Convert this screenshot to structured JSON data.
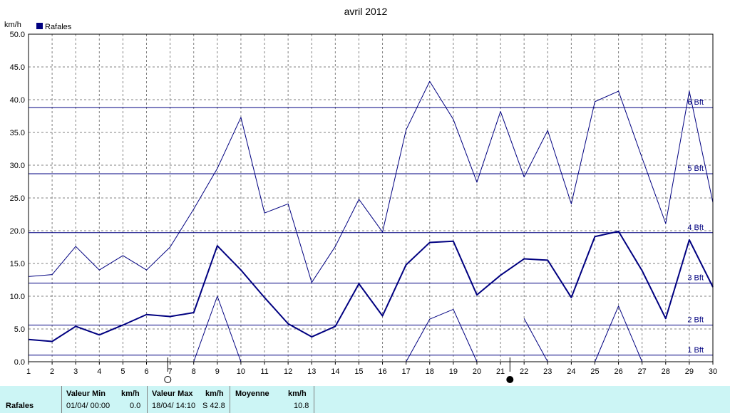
{
  "chart_data": {
    "type": "line",
    "title": "avril 2012",
    "ylabel": "km/h",
    "legend": {
      "label": "Rafales",
      "color": "#000080",
      "placement": "top-left"
    },
    "x": [
      1,
      2,
      3,
      4,
      5,
      6,
      7,
      8,
      9,
      10,
      11,
      12,
      13,
      14,
      15,
      16,
      17,
      18,
      19,
      20,
      21,
      22,
      23,
      24,
      25,
      26,
      27,
      28,
      29,
      30
    ],
    "ylim": [
      0,
      50
    ],
    "yticks": [
      "0.0",
      "5.0",
      "10.0",
      "15.0",
      "20.0",
      "25.0",
      "30.0",
      "35.0",
      "40.0",
      "45.0",
      "50.0"
    ],
    "grid": true,
    "series": [
      {
        "role": "max",
        "color": "#000080",
        "values": [
          13.0,
          13.3,
          17.6,
          14.0,
          16.2,
          14.0,
          17.5,
          23.3,
          29.5,
          37.3,
          22.7,
          24.1,
          12.1,
          17.6,
          24.8,
          19.8,
          35.4,
          42.8,
          37.0,
          27.4,
          38.2,
          28.2,
          35.3,
          24.1,
          39.7,
          41.3,
          31.1,
          21.1,
          41.3,
          24.3
        ]
      },
      {
        "role": "mean",
        "color": "#000080",
        "values": [
          3.4,
          3.1,
          5.4,
          4.1,
          5.6,
          7.2,
          6.9,
          7.5,
          17.7,
          14.0,
          9.8,
          5.8,
          3.8,
          5.4,
          11.9,
          7.0,
          14.8,
          18.2,
          18.4,
          10.2,
          13.2,
          15.7,
          15.5,
          9.8,
          19.1,
          19.9,
          13.9,
          6.6,
          18.6,
          11.4
        ]
      },
      {
        "role": "min",
        "color": "#000080",
        "values": [
          null,
          null,
          null,
          null,
          null,
          null,
          null,
          0.0,
          10.0,
          0.0,
          null,
          null,
          null,
          null,
          null,
          null,
          0.0,
          6.5,
          8.0,
          0.0,
          null,
          6.6,
          0.0,
          null,
          0.0,
          8.5,
          0.0,
          null,
          null,
          null
        ]
      }
    ],
    "beaufort_lines": [
      {
        "label": "1 Bft",
        "value": 1.0
      },
      {
        "label": "2 Bft",
        "value": 5.6
      },
      {
        "label": "3 Bft",
        "value": 12.0
      },
      {
        "label": "4 Bft",
        "value": 19.7
      },
      {
        "label": "5 Bft",
        "value": 28.7
      },
      {
        "label": "6 Bft",
        "value": 38.8
      }
    ],
    "moon_phases": [
      {
        "day": 6.9,
        "phase": "full"
      },
      {
        "day": 21.4,
        "phase": "new"
      }
    ]
  },
  "footer": {
    "series_label": "Rafales",
    "min_header": "Valeur Min",
    "min_unit": "km/h",
    "min_date": "01/04/  00:00",
    "min_value": "0.0",
    "max_header": "Valeur Max",
    "max_unit": "km/h",
    "max_date": "18/04/  14:10",
    "max_value": "S 42.8",
    "avg_header": "Moyenne",
    "avg_unit": "km/h",
    "avg_value": "10.8"
  }
}
